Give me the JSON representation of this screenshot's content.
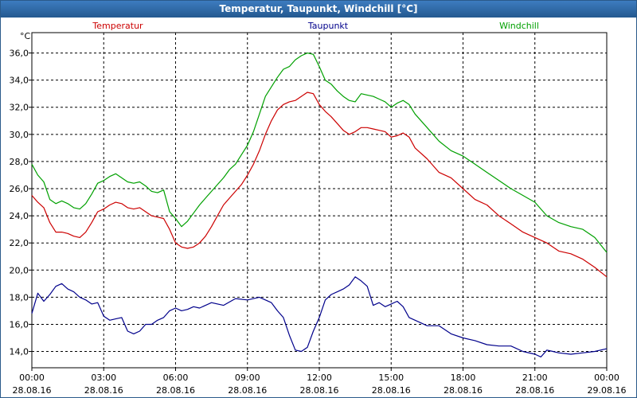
{
  "window_title": "Temperatur, Taupunkt, Windchill [°C]",
  "chart_data": {
    "type": "line",
    "title": "Temperatur, Taupunkt, Windchill [°C]",
    "ylabel": "°C",
    "xlabel": "",
    "ylim": [
      12.8,
      37.5
    ],
    "xlim": [
      0,
      24
    ],
    "y_ticks": [
      "14,0",
      "16,0",
      "18,0",
      "20,0",
      "22,0",
      "24,0",
      "26,0",
      "28,0",
      "30,0",
      "32,0",
      "34,0",
      "36,0"
    ],
    "x_ticks": [
      {
        "time": "00:00",
        "date": "28.08.16"
      },
      {
        "time": "03:00",
        "date": "28.08.16"
      },
      {
        "time": "06:00",
        "date": "28.08.16"
      },
      {
        "time": "09:00",
        "date": "28.08.16"
      },
      {
        "time": "12:00",
        "date": "28.08.16"
      },
      {
        "time": "15:00",
        "date": "28.08.16"
      },
      {
        "time": "18:00",
        "date": "28.08.16"
      },
      {
        "time": "21:00",
        "date": "28.08.16"
      },
      {
        "time": "00:00",
        "date": "29.08.16"
      }
    ],
    "grid": true,
    "legend_position": "top",
    "series": [
      {
        "name": "Temperatur",
        "color": "#cc0000",
        "x": [
          0,
          0.25,
          0.5,
          0.75,
          1,
          1.25,
          1.5,
          1.75,
          2,
          2.25,
          2.5,
          2.75,
          3,
          3.25,
          3.5,
          3.75,
          4,
          4.25,
          4.5,
          4.75,
          5,
          5.25,
          5.5,
          5.75,
          6,
          6.25,
          6.5,
          6.75,
          7,
          7.25,
          7.5,
          7.75,
          8,
          8.25,
          8.5,
          8.75,
          9,
          9.25,
          9.5,
          9.75,
          10,
          10.25,
          10.5,
          10.75,
          11,
          11.25,
          11.5,
          11.75,
          12,
          12.25,
          12.5,
          12.75,
          13,
          13.25,
          13.5,
          13.75,
          14,
          14.25,
          14.5,
          14.75,
          15,
          15.25,
          15.5,
          15.75,
          16,
          16.5,
          17,
          17.5,
          18,
          18.5,
          19,
          19.5,
          20,
          20.5,
          21,
          21.5,
          22,
          22.5,
          23,
          23.5,
          24
        ],
        "values": [
          25.5,
          25.0,
          24.6,
          23.5,
          22.8,
          22.8,
          22.7,
          22.5,
          22.4,
          22.8,
          23.5,
          24.3,
          24.5,
          24.8,
          25.0,
          24.9,
          24.6,
          24.5,
          24.6,
          24.3,
          24.0,
          23.9,
          23.8,
          23.0,
          22.0,
          21.7,
          21.6,
          21.7,
          22.0,
          22.5,
          23.2,
          24.0,
          24.8,
          25.3,
          25.8,
          26.3,
          27.0,
          27.8,
          28.8,
          30.0,
          31.0,
          31.8,
          32.2,
          32.4,
          32.5,
          32.8,
          33.1,
          33.0,
          32.2,
          31.7,
          31.3,
          30.8,
          30.3,
          30.0,
          30.2,
          30.5,
          30.5,
          30.4,
          30.3,
          30.2,
          29.8,
          29.9,
          30.1,
          29.8,
          29.0,
          28.2,
          27.2,
          26.8,
          26.0,
          25.2,
          24.8,
          24.0,
          23.4,
          22.8,
          22.4,
          22.0,
          21.4,
          21.2,
          20.8,
          20.2,
          19.5
        ]
      },
      {
        "name": "Taupunkt",
        "color": "#00008b",
        "x": [
          0,
          0.25,
          0.5,
          0.75,
          1,
          1.25,
          1.5,
          1.75,
          2,
          2.25,
          2.5,
          2.75,
          3,
          3.25,
          3.5,
          3.75,
          4,
          4.25,
          4.5,
          4.75,
          5,
          5.25,
          5.5,
          5.75,
          6,
          6.25,
          6.5,
          6.75,
          7,
          7.5,
          8,
          8.5,
          9,
          9.5,
          10,
          10.25,
          10.5,
          10.75,
          11,
          11.25,
          11.5,
          11.75,
          12,
          12.25,
          12.5,
          12.75,
          13,
          13.25,
          13.5,
          13.75,
          14,
          14.25,
          14.5,
          14.75,
          15,
          15.25,
          15.5,
          15.75,
          16,
          16.5,
          17,
          17.5,
          18,
          18.5,
          19,
          19.5,
          20,
          20.5,
          21,
          21.25,
          21.5,
          21.75,
          22,
          22.5,
          23,
          23.5,
          24
        ],
        "values": [
          16.8,
          18.3,
          17.7,
          18.2,
          18.8,
          19.0,
          18.6,
          18.4,
          18.0,
          17.8,
          17.5,
          17.6,
          16.6,
          16.3,
          16.4,
          16.5,
          15.5,
          15.3,
          15.5,
          16.0,
          16.0,
          16.3,
          16.5,
          17.0,
          17.2,
          17.0,
          17.1,
          17.3,
          17.2,
          17.6,
          17.4,
          17.9,
          17.8,
          18.0,
          17.6,
          17.0,
          16.5,
          15.2,
          14.1,
          14.0,
          14.3,
          15.5,
          16.5,
          17.8,
          18.2,
          18.4,
          18.6,
          18.9,
          19.5,
          19.2,
          18.8,
          17.4,
          17.6,
          17.3,
          17.5,
          17.7,
          17.3,
          16.5,
          16.3,
          15.9,
          15.9,
          15.3,
          15.0,
          14.8,
          14.5,
          14.4,
          14.4,
          14.0,
          13.8,
          13.6,
          14.1,
          14.0,
          13.9,
          13.8,
          13.9,
          14.0,
          14.2
        ]
      },
      {
        "name": "Windchill",
        "color": "#00a000",
        "x": [
          0,
          0.25,
          0.5,
          0.75,
          1,
          1.25,
          1.5,
          1.75,
          2,
          2.25,
          2.5,
          2.75,
          3,
          3.25,
          3.5,
          3.75,
          4,
          4.25,
          4.5,
          4.75,
          5,
          5.25,
          5.5,
          5.75,
          6,
          6.25,
          6.5,
          6.75,
          7,
          7.25,
          7.5,
          7.75,
          8,
          8.25,
          8.5,
          8.75,
          9,
          9.25,
          9.5,
          9.75,
          10,
          10.25,
          10.5,
          10.75,
          11,
          11.25,
          11.5,
          11.75,
          12,
          12.25,
          12.5,
          12.75,
          13,
          13.25,
          13.5,
          13.75,
          14,
          14.25,
          14.5,
          14.75,
          15,
          15.25,
          15.5,
          15.75,
          16,
          16.5,
          17,
          17.5,
          18,
          18.5,
          19,
          19.5,
          20,
          20.5,
          21,
          21.5,
          22,
          22.5,
          23,
          23.5,
          24
        ],
        "values": [
          27.8,
          27.0,
          26.5,
          25.2,
          24.9,
          25.1,
          24.9,
          24.6,
          24.5,
          24.9,
          25.6,
          26.4,
          26.6,
          26.9,
          27.1,
          26.8,
          26.5,
          26.4,
          26.5,
          26.2,
          25.8,
          25.7,
          25.9,
          24.3,
          23.8,
          23.2,
          23.6,
          24.2,
          24.8,
          25.3,
          25.8,
          26.3,
          26.8,
          27.4,
          27.8,
          28.5,
          29.2,
          30.2,
          31.5,
          32.8,
          33.5,
          34.2,
          34.8,
          35.0,
          35.5,
          35.8,
          36.0,
          35.9,
          35.0,
          34.0,
          33.7,
          33.2,
          32.8,
          32.5,
          32.4,
          33.0,
          32.9,
          32.8,
          32.6,
          32.4,
          32.0,
          32.3,
          32.5,
          32.2,
          31.5,
          30.5,
          29.5,
          28.8,
          28.4,
          27.8,
          27.2,
          26.6,
          26.0,
          25.5,
          25.0,
          24.0,
          23.5,
          23.2,
          23.0,
          22.4,
          21.3
        ]
      }
    ]
  }
}
